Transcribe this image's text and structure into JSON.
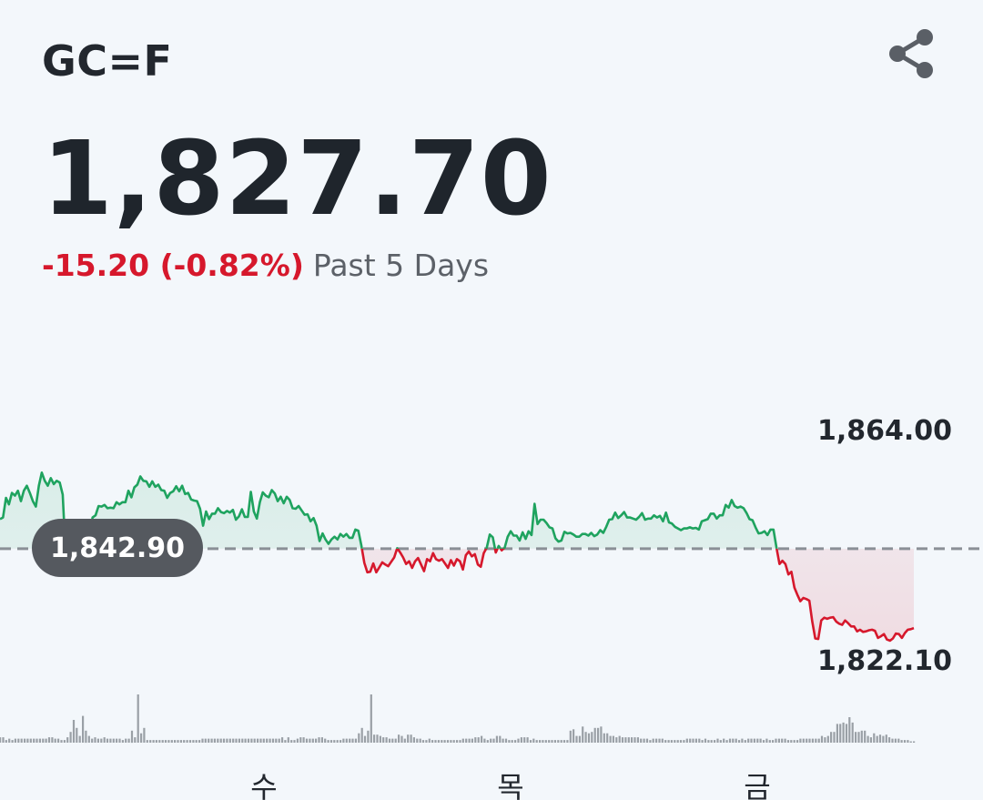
{
  "header": {
    "ticker": "GC=F",
    "share_icon": "share-icon"
  },
  "quote": {
    "price": "1,827.70",
    "change": "-15.20 (-0.82%)",
    "period": "Past 5 Days"
  },
  "colors": {
    "up": "#1fa35f",
    "down": "#d6182c",
    "text": "#22272e",
    "volume": "#9aa0a6",
    "baseline": "#8a8f96",
    "background": "#f3f7fb"
  },
  "chart_data": {
    "type": "line",
    "baseline": 1842.9,
    "baseline_label": "1,842.90",
    "ylim": [
      1822.1,
      1864.0
    ],
    "y_labels": {
      "max": "1,864.00",
      "min": "1,822.10"
    },
    "x_ticks": [
      "수",
      "목",
      "금"
    ],
    "series": [
      {
        "values": [
          1848.3,
          1848.6,
          1852.2,
          1851.0,
          1853.1,
          1852.6,
          1853.5,
          1851.6,
          1853.5,
          1854.4,
          1853.1,
          1851.6,
          1850.6,
          1854.4,
          1856.8,
          1855.3,
          1854.4,
          1855.8,
          1854.7,
          1855.3,
          1855.0,
          1852.8,
          1841.6,
          1842.4,
          1839.8,
          1841.2,
          1841.0,
          1839.5,
          1840.8,
          1839.8,
          1845.3,
          1848.6,
          1849.0,
          1850.7,
          1850.6,
          1850.9,
          1850.3,
          1850.4,
          1850.3,
          1851.4,
          1851.0,
          1851.4,
          1851.4,
          1853.5,
          1852.3,
          1854.1,
          1854.6,
          1856.1,
          1855.3,
          1855.2,
          1854.2,
          1855.2,
          1854.2,
          1854.6,
          1853.6,
          1853.5,
          1852.2,
          1853.1,
          1853.4,
          1854.3,
          1853.4,
          1854.4,
          1852.9,
          1853.1,
          1851.9,
          1851.7,
          1851.6,
          1850.2,
          1847.1,
          1849.7,
          1848.3,
          1849.3,
          1849.3,
          1850.3,
          1849.6,
          1849.4,
          1849.8,
          1849.5,
          1850.0,
          1848.2,
          1848.8,
          1850.1,
          1848.7,
          1848.7,
          1853.3,
          1849.7,
          1848.4,
          1851.4,
          1853.2,
          1852.6,
          1852.3,
          1853.6,
          1853.0,
          1851.6,
          1852.4,
          1851.2,
          1852.4,
          1851.8,
          1850.3,
          1850.2,
          1850.7,
          1849.9,
          1849.1,
          1849.2,
          1847.9,
          1848.5,
          1847.1,
          1844.3,
          1845.7,
          1844.6,
          1843.8,
          1844.6,
          1845.1,
          1844.6,
          1845.6,
          1845.1,
          1845.6,
          1844.9,
          1844.9,
          1846.4,
          1846.2,
          1843.5,
          1840.3,
          1838.6,
          1838.7,
          1840.2,
          1838.6,
          1839.5,
          1840.4,
          1840.0,
          1839.7,
          1840.5,
          1841.3,
          1843.0,
          1842.2,
          1841.3,
          1840.1,
          1840.6,
          1839.4,
          1840.6,
          1841.2,
          1840.0,
          1838.8,
          1841.0,
          1840.6,
          1842.1,
          1841.0,
          1840.7,
          1841.0,
          1840.2,
          1839.4,
          1840.8,
          1839.8,
          1841.0,
          1840.6,
          1839.1,
          1841.7,
          1842.4,
          1841.5,
          1841.9,
          1840.0,
          1839.6,
          1842.1,
          1843.1,
          1845.5,
          1845.0,
          1842.2,
          1843.4,
          1842.6,
          1843.1,
          1845.1,
          1846.1,
          1845.3,
          1845.3,
          1844.4,
          1845.9,
          1844.7,
          1846.1,
          1845.4,
          1851.1,
          1847.4,
          1848.2,
          1848.2,
          1847.6,
          1846.8,
          1846.6,
          1844.8,
          1844.2,
          1844.4,
          1846.0,
          1845.7,
          1845.8,
          1845.5,
          1845.1,
          1845.1,
          1845.6,
          1845.6,
          1845.3,
          1845.8,
          1845.2,
          1845.5,
          1846.3,
          1845.8,
          1846.9,
          1848.2,
          1848.3,
          1849.5,
          1848.5,
          1849.0,
          1849.6,
          1848.6,
          1848.6,
          1848.4,
          1848.2,
          1848.7,
          1849.4,
          1848.2,
          1848.4,
          1848.4,
          1849.0,
          1848.6,
          1848.9,
          1847.9,
          1849.5,
          1847.7,
          1847.5,
          1846.9,
          1846.6,
          1846.3,
          1846.6,
          1846.6,
          1846.8,
          1846.6,
          1846.7,
          1846.4,
          1847.9,
          1848.1,
          1848.3,
          1849.3,
          1849.3,
          1848.4,
          1849.0,
          1849.0,
          1850.9,
          1850.4,
          1851.8,
          1850.7,
          1850.4,
          1850.6,
          1850.3,
          1849.4,
          1848.3,
          1848.1,
          1846.8,
          1845.7,
          1845.8,
          1846.1,
          1845.4,
          1846.4,
          1846.4,
          1843.1,
          1840.1,
          1840.7,
          1840.1,
          1838.2,
          1838.7,
          1835.8,
          1834.5,
          1833.3,
          1833.9,
          1833.7,
          1833.4,
          1829.6,
          1826.5,
          1826.4,
          1829.8,
          1830.3,
          1830.1,
          1830.3,
          1830.4,
          1829.6,
          1829.2,
          1829.0,
          1829.8,
          1829.3,
          1828.7,
          1828.7,
          1827.8,
          1828.1,
          1827.7,
          1827.8,
          1828.0,
          1828.1,
          1827.9,
          1826.6,
          1826.9,
          1827.3,
          1826.3,
          1826.1,
          1826.5,
          1827.4,
          1827.3,
          1826.6,
          1827.5,
          1828.1,
          1828.2,
          1828.4
        ]
      }
    ],
    "volume": [
      4,
      4,
      2,
      3,
      2,
      3,
      3,
      3,
      3,
      3,
      3,
      3,
      3,
      3,
      3,
      3,
      4,
      4,
      3,
      3,
      2,
      2,
      4,
      8,
      17,
      11,
      5,
      20,
      9,
      5,
      3,
      4,
      3,
      3,
      4,
      3,
      3,
      3,
      3,
      3,
      2,
      3,
      3,
      9,
      4,
      36,
      7,
      11,
      2,
      2,
      2,
      2,
      2,
      2,
      2,
      2,
      2,
      2,
      2,
      2,
      2,
      2,
      2,
      2,
      2,
      2,
      3,
      3,
      3,
      3,
      3,
      3,
      3,
      3,
      3,
      3,
      3,
      3,
      3,
      3,
      3,
      3,
      3,
      3,
      3,
      3,
      3,
      3,
      3,
      3,
      3,
      3,
      4,
      2,
      4,
      2,
      2,
      3,
      4,
      4,
      3,
      3,
      3,
      3,
      4,
      4,
      3,
      2,
      2,
      2,
      2,
      2,
      3,
      3,
      3,
      3,
      3,
      7,
      11,
      5,
      9,
      36,
      6,
      6,
      5,
      4,
      4,
      3,
      3,
      3,
      6,
      5,
      3,
      6,
      6,
      4,
      3,
      3,
      2,
      2,
      3,
      2,
      2,
      2,
      2,
      2,
      2,
      2,
      2,
      2,
      2,
      3,
      3,
      3,
      3,
      4,
      4,
      5,
      3,
      2,
      3,
      3,
      5,
      5,
      3,
      3,
      2,
      2,
      2,
      3,
      4,
      4,
      4,
      2,
      3,
      2,
      2,
      2,
      2,
      2,
      2,
      2,
      2,
      2,
      2,
      2,
      9,
      10,
      5,
      5,
      12,
      8,
      7,
      8,
      11,
      11,
      12,
      7,
      7,
      5,
      5,
      4,
      5,
      4,
      4,
      4,
      4,
      4,
      4,
      3,
      3,
      3,
      2,
      3,
      3,
      3,
      3,
      2,
      2,
      2,
      2,
      2,
      2,
      2,
      3,
      3,
      3,
      3,
      3,
      2,
      3,
      2,
      2,
      2,
      3,
      2,
      3,
      2,
      3,
      3,
      3,
      2,
      3,
      2,
      3,
      3,
      3,
      3,
      3,
      2,
      3,
      2,
      2,
      3,
      3,
      3,
      3,
      2,
      2,
      2,
      2,
      3,
      3,
      3,
      3,
      3,
      3,
      3,
      5,
      4,
      5,
      8,
      8,
      14,
      14,
      15,
      14,
      19,
      15,
      8,
      8,
      9,
      9,
      5,
      4,
      7,
      5,
      6,
      5,
      6,
      4,
      3,
      3,
      3,
      2,
      2,
      2,
      1,
      1
    ]
  }
}
